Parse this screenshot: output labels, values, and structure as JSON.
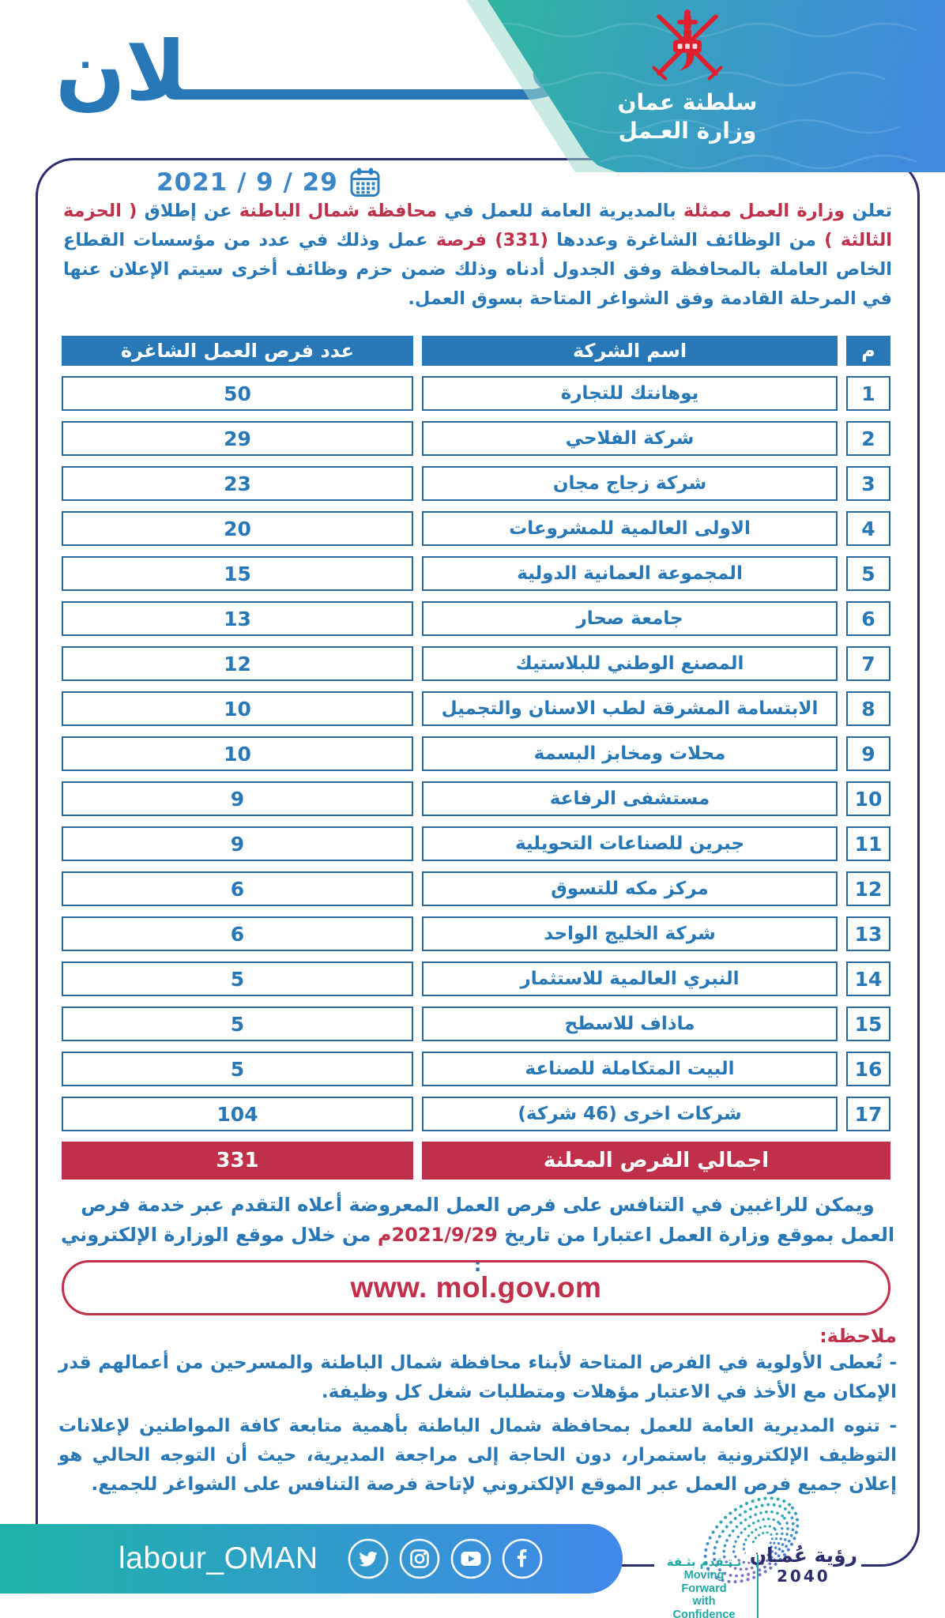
{
  "colors": {
    "accent_blue": "#2878b8",
    "date_blue": "#3a86c8",
    "accent_red": "#c0304a",
    "emblem_red": "#e01f2e",
    "navy": "#2b2d6e",
    "table_border_blue": "#2b6a9f",
    "teal": "#2eb69e",
    "footer_teal": "#1eb3a8",
    "footer_blue": "#4187ea"
  },
  "header": {
    "title": "إعــــــــــــلان",
    "ministry_line1": "سلطنة عمان",
    "ministry_line2": "وزارة العـمل",
    "date": "2021 / 9 / 29"
  },
  "intro": {
    "segments": [
      {
        "t": "تعلن ",
        "c": "blue"
      },
      {
        "t": "وزارة العمل ممثلة ",
        "c": "red"
      },
      {
        "t": "بالمديرية العامة للعمل في ",
        "c": "blue"
      },
      {
        "t": "محافظة شمال الباطنة ",
        "c": "red"
      },
      {
        "t": "عن إطلاق ",
        "c": "blue"
      },
      {
        "t": "( الحزمة الثالثة ) ",
        "c": "red"
      },
      {
        "t": "من الوظائف الشاغرة وعددها ",
        "c": "blue"
      },
      {
        "t": "(331) فرصة ",
        "c": "red"
      },
      {
        "t": "عمل وذلك في عدد من مؤسسات القطاع الخاص العاملة بالمحافظة وفق الجدول أدناه وذلك ضمن حزم وظائف أخرى سيتم الإعلان عنها في المرحلة القادمة وفق الشواغر المتاحة بسوق العمل.",
        "c": "blue"
      }
    ]
  },
  "table": {
    "headers": {
      "serial": "م",
      "company": "اسم الشركة",
      "count": "عدد فرص العمل الشاغرة"
    },
    "rows": [
      {
        "n": "1",
        "company": "يوهانتك للتجارة",
        "count": "50"
      },
      {
        "n": "2",
        "company": "شركة الفلاحي",
        "count": "29"
      },
      {
        "n": "3",
        "company": "شركة زجاج مجان",
        "count": "23"
      },
      {
        "n": "4",
        "company": "الاولى العالمية للمشروعات",
        "count": "20"
      },
      {
        "n": "5",
        "company": "المجموعة العمانية الدولية",
        "count": "15"
      },
      {
        "n": "6",
        "company": "جامعة صحار",
        "count": "13"
      },
      {
        "n": "7",
        "company": "المصنع الوطني للبلاستيك",
        "count": "12"
      },
      {
        "n": "8",
        "company": "الابتسامة المشرقة لطب الاسنان والتجميل",
        "count": "10"
      },
      {
        "n": "9",
        "company": "محلات ومخابز البسمة",
        "count": "10"
      },
      {
        "n": "10",
        "company": "مستشفى الرفاعة",
        "count": "9"
      },
      {
        "n": "11",
        "company": "جبرين للصناعات التحويلية",
        "count": "9"
      },
      {
        "n": "12",
        "company": "مركز مكه للتسوق",
        "count": "6"
      },
      {
        "n": "13",
        "company": "شركة الخليج الواحد",
        "count": "6"
      },
      {
        "n": "14",
        "company": "النبري العالمية للاستثمار",
        "count": "5"
      },
      {
        "n": "15",
        "company": "ماذاف للاسطح",
        "count": "5"
      },
      {
        "n": "16",
        "company": "البيت المتكاملة للصناعة",
        "count": "5"
      },
      {
        "n": "17",
        "company": "شركات اخرى (46 شركة)",
        "count": "104"
      }
    ],
    "total": {
      "label": "اجمالي الفرص المعلنة",
      "value": "331"
    }
  },
  "apply": {
    "segments": [
      {
        "t": "ويمكن للراغبين في التنافس على فرص العمل المعروضة أعلاه التقدم عبر خدمة فرص العمل بموقع وزارة العمل اعتبارا من تاريخ ",
        "c": "blue"
      },
      {
        "t": "2021/9/29م",
        "c": "red"
      },
      {
        "t": " من خلال موقع الوزارة الإلكتروني :",
        "c": "blue"
      }
    ]
  },
  "website": "www. mol.gov.om",
  "note": {
    "title": "ملاحظة:",
    "items": [
      "- تُعطى الأولوية في الفرص المتاحة لأبناء محافظة شمال الباطنة والمسرحين من أعمالهم قدر الإمكان مع الأخذ في الاعتبار مؤهلات ومتطلبات شغل كل وظيفة.",
      "- تنوه المديرية العامة للعمل بمحافظة شمال الباطنة بأهمية متابعة كافة المواطنين لإعلانات التوظيف الإلكترونية باستمرار، دون الحاجة إلى مراجعة المديرية، حيث أن التوجه الحالي هو إعلان جميع فرص العمل عبر الموقع الإلكتروني لإتاحة فرصة التنافس على الشواغر للجميع."
    ]
  },
  "footer": {
    "handle": "labour_OMAN",
    "social_icons": [
      "twitter",
      "instagram",
      "youtube",
      "facebook"
    ],
    "vision_logo": {
      "line1": "رؤية عُمـان",
      "line2": "2040"
    },
    "motto_logo": {
      "arabic": "نـتـقدم بثـقة",
      "english_line1": "Moving Forward",
      "english_line2": "with Confidence"
    }
  }
}
